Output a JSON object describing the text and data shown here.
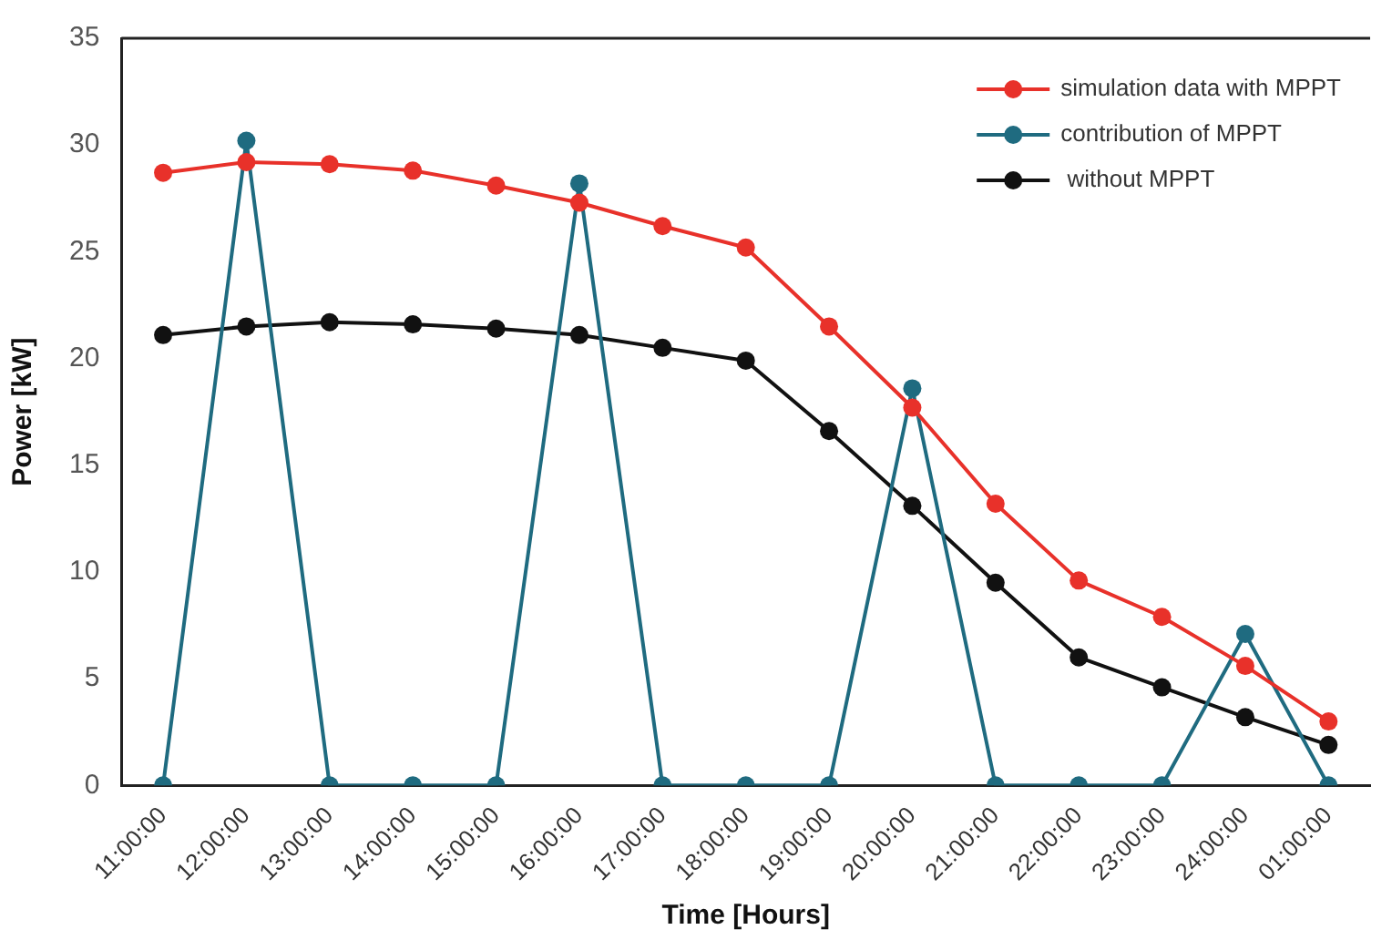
{
  "chart_data": {
    "type": "line",
    "xlabel": "Time [Hours]",
    "ylabel": "Power [kW]",
    "categories": [
      "11:00:00",
      "12:00:00",
      "13:00:00",
      "14:00:00",
      "15:00:00",
      "16:00:00",
      "17:00:00",
      "18:00:00",
      "19:00:00",
      "20:00:00",
      "21:00:00",
      "22:00:00",
      "23:00:00",
      "24:00:00",
      "01:00:00"
    ],
    "series": [
      {
        "name": "simulation data with MPPT",
        "color": "#e8312a",
        "values": [
          28.7,
          29.2,
          29.1,
          28.8,
          28.1,
          27.3,
          26.2,
          25.2,
          21.5,
          17.7,
          13.2,
          9.6,
          7.9,
          5.6,
          3.0
        ]
      },
      {
        "name": "contribution of MPPT",
        "color": "#1f6b80",
        "values": [
          0,
          30.2,
          0,
          0,
          0,
          28.2,
          0,
          0,
          0,
          18.6,
          0,
          0,
          0,
          7.1,
          0
        ]
      },
      {
        "name": " without MPPT",
        "color": "#111111",
        "values": [
          21.1,
          21.5,
          21.7,
          21.6,
          21.4,
          21.1,
          20.5,
          19.9,
          16.6,
          13.1,
          9.5,
          6.0,
          4.6,
          3.2,
          1.9
        ]
      }
    ],
    "ylim": [
      0,
      35
    ],
    "yticks": [
      0,
      5,
      10,
      15,
      20,
      25,
      30,
      35
    ],
    "grid": false,
    "legend": "top right",
    "marker": "circle",
    "line_style": "solid"
  }
}
